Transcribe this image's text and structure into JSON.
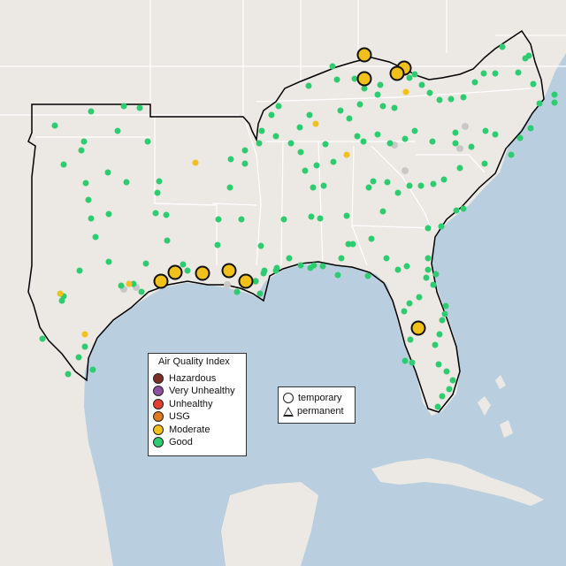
{
  "map": {
    "colors": {
      "land": "#ece8e3",
      "land_outside": "#e8e4df",
      "ocean": "#b9cfdf",
      "ocean_deep": "#a9c4d9",
      "state_border": "#ffffff",
      "region_outline": "#000000"
    }
  },
  "legend": {
    "title": "Air Quality Index",
    "items": [
      {
        "label": "Hazardous",
        "color": "#7e2f25"
      },
      {
        "label": "Very Unhealthy",
        "color": "#8f4fa3"
      },
      {
        "label": "Unhealthy",
        "color": "#e0402c"
      },
      {
        "label": "USG",
        "color": "#e07a1f"
      },
      {
        "label": "Moderate",
        "color": "#f2c01a"
      },
      {
        "label": "Good",
        "color": "#2ecc71"
      }
    ]
  },
  "shape_legend": {
    "items": [
      {
        "label": "temporary",
        "shape": "circle"
      },
      {
        "label": "permanent",
        "shape": "triangle"
      }
    ]
  }
}
